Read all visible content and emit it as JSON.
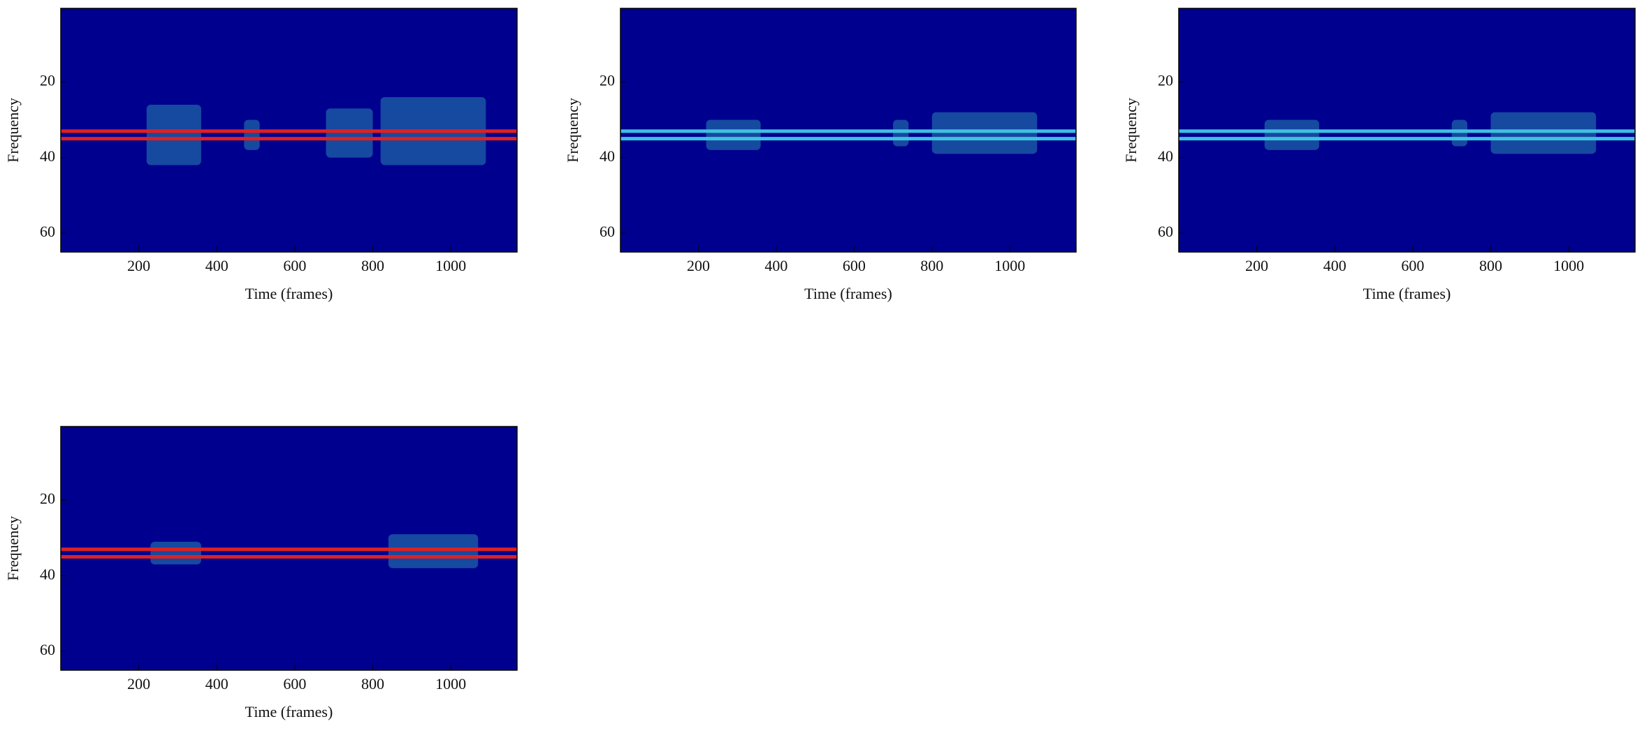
{
  "chart_data": [
    {
      "type": "heatmap",
      "xlabel": "Time (frames)",
      "ylabel": "Frequency",
      "xlim": [
        0,
        1170
      ],
      "ylim": [
        0.5,
        65
      ],
      "xticks": [
        200,
        400,
        600,
        800,
        1000
      ],
      "yticks": [
        20,
        40,
        60
      ],
      "color": "#00008f",
      "ridge": {
        "values": [
          33,
          35
        ],
        "color": "#e02020"
      },
      "bursts": [
        {
          "x": [
            220,
            360
          ],
          "y": [
            26,
            42
          ]
        },
        {
          "x": [
            470,
            510
          ],
          "y": [
            30,
            38
          ]
        },
        {
          "x": [
            680,
            800
          ],
          "y": [
            27,
            40
          ]
        },
        {
          "x": [
            820,
            1090
          ],
          "y": [
            24,
            42
          ]
        }
      ],
      "burst_color": "#3fd0c0"
    },
    {
      "type": "heatmap",
      "xlabel": "Time (frames)",
      "ylabel": "Frequency",
      "xlim": [
        0,
        1170
      ],
      "ylim": [
        0.5,
        65
      ],
      "xticks": [
        200,
        400,
        600,
        800,
        1000
      ],
      "yticks": [
        20,
        40,
        60
      ],
      "color": "#00008f",
      "ridge": {
        "values": [
          33,
          35
        ],
        "color": "#40c0e0"
      },
      "bursts": [
        {
          "x": [
            220,
            360
          ],
          "y": [
            30,
            38
          ]
        },
        {
          "x": [
            700,
            740
          ],
          "y": [
            30,
            37
          ]
        },
        {
          "x": [
            800,
            1070
          ],
          "y": [
            28,
            39
          ]
        }
      ],
      "burst_color": "#3fd0c0"
    },
    {
      "type": "heatmap",
      "xlabel": "Time (frames)",
      "ylabel": "Frequency",
      "xlim": [
        0,
        1170
      ],
      "ylim": [
        0.5,
        65
      ],
      "xticks": [
        200,
        400,
        600,
        800,
        1000
      ],
      "yticks": [
        20,
        40,
        60
      ],
      "color": "#00008f",
      "ridge": {
        "values": [
          33,
          35
        ],
        "color": "#40c0e0"
      },
      "bursts": [
        {
          "x": [
            220,
            360
          ],
          "y": [
            30,
            38
          ]
        },
        {
          "x": [
            700,
            740
          ],
          "y": [
            30,
            37
          ]
        },
        {
          "x": [
            800,
            1070
          ],
          "y": [
            28,
            39
          ]
        }
      ],
      "burst_color": "#3fd0c0"
    },
    {
      "type": "heatmap",
      "xlabel": "Time (frames)",
      "ylabel": "Frequency",
      "xlim": [
        0,
        1170
      ],
      "ylim": [
        0.5,
        65
      ],
      "xticks": [
        200,
        400,
        600,
        800,
        1000
      ],
      "yticks": [
        20,
        40,
        60
      ],
      "color": "#00008f",
      "ridge": {
        "values": [
          33,
          35
        ],
        "color": "#e02020"
      },
      "bursts": [
        {
          "x": [
            230,
            360
          ],
          "y": [
            31,
            37
          ]
        },
        {
          "x": [
            840,
            1070
          ],
          "y": [
            29,
            38
          ]
        }
      ],
      "burst_color": "#3fd0c0"
    }
  ]
}
